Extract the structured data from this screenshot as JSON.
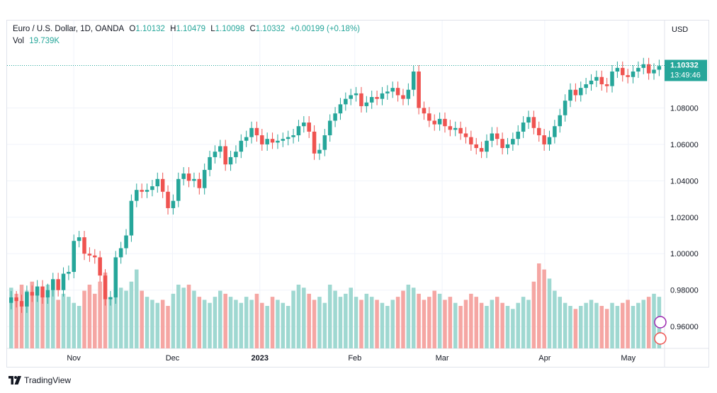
{
  "legend": {
    "symbol": "Euro / U.S. Dollar, 1D, OANDA",
    "o_label": "O",
    "o_value": "1.10132",
    "h_label": "H",
    "h_value": "1.10479",
    "l_label": "L",
    "l_value": "1.10098",
    "c_label": "C",
    "c_value": "1.10332",
    "change": "+0.00199 (+0.18%)",
    "vol_label": "Vol",
    "vol_value": "19.739K"
  },
  "price_axis": {
    "currency": "USD",
    "last_price": "1.10332",
    "countdown": "13:49:46"
  },
  "brand": "TradingView",
  "colors": {
    "up": "#26a69a",
    "down": "#ef5350",
    "up_vol": "#9fd8d1",
    "down_vol": "#f5a6a3",
    "grid": "#f0f3fa",
    "label_bg": "#26a69a"
  },
  "chart_data": {
    "type": "candlestick",
    "title": "Euro / U.S. Dollar, 1D, OANDA",
    "ylim": [
      0.948,
      1.128
    ],
    "y_ticks": [
      "1.08000",
      "1.06000",
      "1.04000",
      "1.02000",
      "1.00000",
      "0.98000",
      "0.96000"
    ],
    "x_ticks": [
      "Nov",
      "Dec",
      "2023",
      "Feb",
      "Mar",
      "Apr",
      "May"
    ],
    "grid": true,
    "last_close": 1.10332,
    "closes": [
      0.976,
      0.974,
      0.971,
      0.979,
      0.977,
      0.982,
      0.976,
      0.98,
      0.986,
      0.98,
      0.989,
      0.99,
      1.007,
      1.009,
      1.0,
      0.999,
      0.998,
      0.988,
      0.975,
      0.976,
      0.998,
      1.003,
      1.01,
      1.029,
      1.035,
      1.034,
      1.035,
      1.037,
      1.041,
      1.034,
      1.025,
      1.029,
      1.041,
      1.044,
      1.04,
      1.041,
      1.036,
      1.046,
      1.053,
      1.056,
      1.059,
      1.049,
      1.053,
      1.056,
      1.062,
      1.064,
      1.069,
      1.065,
      1.06,
      1.063,
      1.061,
      1.062,
      1.063,
      1.064,
      1.065,
      1.07,
      1.072,
      1.067,
      1.055,
      1.057,
      1.065,
      1.073,
      1.077,
      1.082,
      1.085,
      1.087,
      1.088,
      1.081,
      1.083,
      1.086,
      1.085,
      1.088,
      1.089,
      1.091,
      1.087,
      1.085,
      1.09,
      1.1,
      1.08,
      1.077,
      1.073,
      1.071,
      1.074,
      1.07,
      1.068,
      1.069,
      1.066,
      1.064,
      1.06,
      1.058,
      1.056,
      1.062,
      1.066,
      1.063,
      1.058,
      1.06,
      1.063,
      1.067,
      1.072,
      1.075,
      1.069,
      1.065,
      1.06,
      1.064,
      1.07,
      1.076,
      1.084,
      1.09,
      1.087,
      1.091,
      1.093,
      1.095,
      1.097,
      1.093,
      1.092,
      1.1,
      1.102,
      1.098,
      1.097,
      1.1,
      1.102,
      1.104,
      1.099,
      1.101,
      1.103
    ],
    "volumes": [
      2.0,
      1.8,
      2.1,
      1.9,
      2.2,
      2.0,
      1.9,
      2.1,
      2.2,
      1.6,
      1.8,
      1.7,
      1.5,
      1.4,
      1.9,
      2.1,
      1.8,
      2.2,
      2.5,
      1.7,
      1.8,
      2.0,
      1.9,
      2.2,
      2.6,
      1.9,
      1.7,
      1.6,
      1.5,
      1.6,
      1.4,
      1.8,
      2.1,
      2.0,
      2.1,
      1.9,
      1.7,
      1.6,
      1.5,
      1.7,
      1.9,
      1.8,
      1.7,
      1.6,
      1.5,
      1.7,
      1.6,
      1.8,
      1.5,
      1.4,
      1.7,
      1.6,
      1.5,
      1.4,
      1.9,
      2.1,
      2.0,
      1.8,
      1.6,
      1.7,
      1.5,
      2.1,
      1.9,
      1.7,
      1.8,
      2.0,
      1.7,
      1.6,
      1.8,
      1.7,
      1.6,
      1.5,
      1.4,
      1.6,
      1.7,
      1.9,
      2.1,
      2.0,
      1.8,
      1.6,
      1.7,
      1.9,
      1.8,
      1.6,
      1.7,
      1.5,
      1.4,
      1.6,
      1.8,
      1.7,
      1.5,
      1.4,
      1.6,
      1.7,
      1.5,
      1.4,
      1.3,
      1.5,
      1.7,
      1.6,
      2.2,
      2.8,
      2.6,
      2.3,
      1.9,
      1.7,
      1.5,
      1.4,
      1.3,
      1.4,
      1.5,
      1.6,
      1.5,
      1.4,
      1.3,
      1.5,
      1.4,
      1.5,
      1.6,
      1.4,
      1.5,
      1.6,
      1.7,
      1.8,
      1.7
    ]
  }
}
